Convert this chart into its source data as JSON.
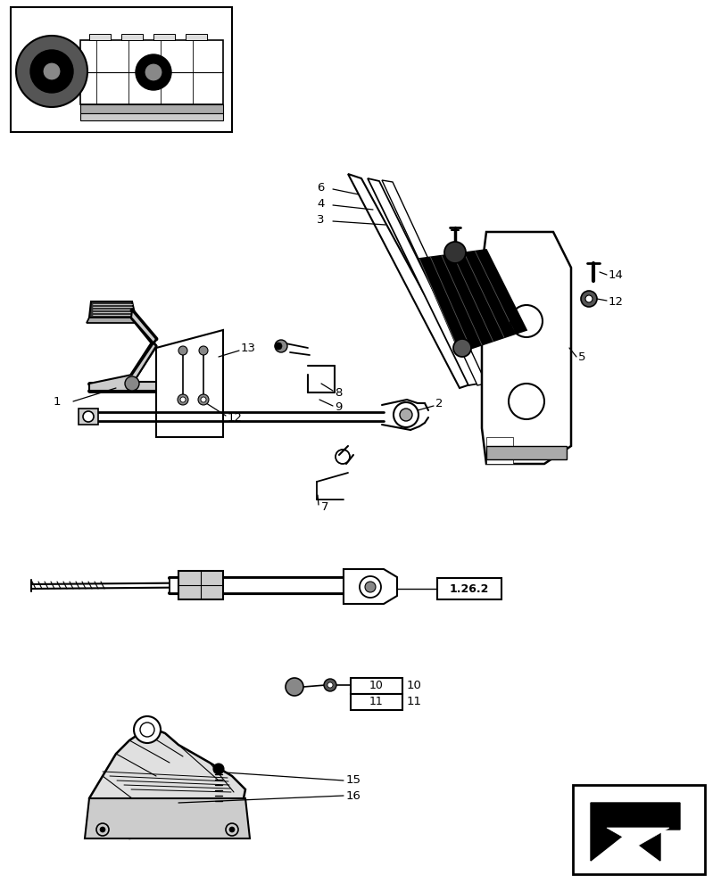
{
  "bg_color": "#ffffff",
  "fig_width": 8.08,
  "fig_height": 10.0,
  "dpi": 100
}
